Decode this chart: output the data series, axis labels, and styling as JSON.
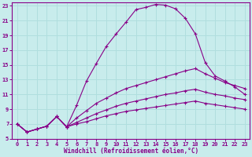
{
  "title": "",
  "xlabel": "Windchill (Refroidissement éolien,°C)",
  "bg_color": "#c8ecec",
  "line_color": "#880088",
  "grid_color": "#b0dede",
  "xlim": [
    -0.5,
    23.5
  ],
  "ylim": [
    5,
    23.5
  ],
  "xticks": [
    0,
    1,
    2,
    3,
    4,
    5,
    6,
    7,
    8,
    9,
    10,
    11,
    12,
    13,
    14,
    15,
    16,
    17,
    18,
    19,
    20,
    21,
    22,
    23
  ],
  "yticks": [
    5,
    7,
    9,
    11,
    13,
    15,
    17,
    19,
    21,
    23
  ],
  "lines": [
    {
      "x": [
        0,
        1,
        2,
        3,
        4,
        5,
        6,
        7,
        8,
        9,
        10,
        11,
        12,
        13,
        14,
        15,
        16,
        17,
        18,
        19,
        20,
        21,
        22,
        23
      ],
      "y": [
        7.0,
        5.9,
        6.3,
        6.7,
        8.0,
        6.6,
        9.5,
        12.8,
        15.2,
        17.5,
        19.2,
        20.8,
        22.5,
        22.8,
        23.2,
        23.1,
        22.6,
        21.3,
        19.2,
        15.3,
        13.5,
        12.8,
        12.0,
        11.0
      ],
      "marker": "+"
    },
    {
      "x": [
        0,
        1,
        2,
        3,
        4,
        5,
        6,
        7,
        8,
        9,
        10,
        11,
        12,
        13,
        14,
        15,
        16,
        17,
        18,
        19,
        20,
        21,
        22,
        23
      ],
      "y": [
        7.0,
        5.9,
        6.3,
        6.7,
        8.0,
        6.6,
        7.8,
        8.8,
        9.8,
        10.5,
        11.2,
        11.8,
        12.2,
        12.6,
        13.0,
        13.4,
        13.8,
        14.2,
        14.5,
        13.8,
        13.2,
        12.6,
        12.2,
        11.8
      ],
      "marker": "+"
    },
    {
      "x": [
        0,
        1,
        2,
        3,
        4,
        5,
        6,
        7,
        8,
        9,
        10,
        11,
        12,
        13,
        14,
        15,
        16,
        17,
        18,
        19,
        20,
        21,
        22,
        23
      ],
      "y": [
        7.0,
        5.9,
        6.3,
        6.7,
        8.0,
        6.6,
        7.2,
        7.8,
        8.4,
        8.9,
        9.4,
        9.8,
        10.1,
        10.4,
        10.7,
        11.0,
        11.2,
        11.5,
        11.7,
        11.3,
        11.0,
        10.8,
        10.5,
        10.3
      ],
      "marker": "+"
    },
    {
      "x": [
        0,
        1,
        2,
        3,
        4,
        5,
        6,
        7,
        8,
        9,
        10,
        11,
        12,
        13,
        14,
        15,
        16,
        17,
        18,
        19,
        20,
        21,
        22,
        23
      ],
      "y": [
        7.0,
        5.9,
        6.3,
        6.7,
        8.0,
        6.6,
        7.0,
        7.3,
        7.7,
        8.1,
        8.4,
        8.7,
        8.9,
        9.1,
        9.3,
        9.5,
        9.7,
        9.9,
        10.1,
        9.8,
        9.6,
        9.4,
        9.2,
        9.0
      ],
      "marker": "+"
    }
  ]
}
